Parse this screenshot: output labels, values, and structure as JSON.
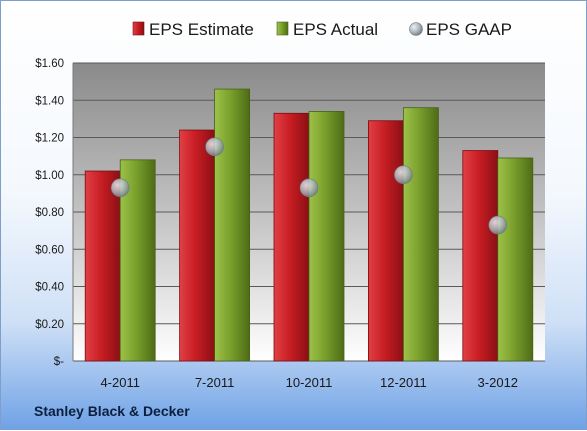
{
  "company": "Stanley Black & Decker",
  "colors": {
    "estimate": "#c81e24",
    "actual": "#7aa02c",
    "gaap": "#9aa5ad"
  },
  "chart_data": {
    "type": "bar",
    "categories": [
      "4-2011",
      "7-2011",
      "10-2011",
      "12-2011",
      "3-2012"
    ],
    "series": [
      {
        "name": "EPS Estimate",
        "type": "bar",
        "values": [
          1.02,
          1.24,
          1.33,
          1.29,
          1.13
        ]
      },
      {
        "name": "EPS Actual",
        "type": "bar",
        "values": [
          1.08,
          1.46,
          1.34,
          1.36,
          1.09
        ]
      },
      {
        "name": "EPS GAAP",
        "type": "scatter",
        "values": [
          0.93,
          1.15,
          0.93,
          1.0,
          0.73
        ]
      }
    ],
    "ylim": [
      0,
      1.6
    ],
    "yticks": [
      0,
      0.2,
      0.4,
      0.6,
      0.8,
      1.0,
      1.2,
      1.4,
      1.6
    ],
    "ytick_labels": [
      "$-",
      "$0.20",
      "$0.40",
      "$0.60",
      "$0.80",
      "$1.00",
      "$1.20",
      "$1.40",
      "$1.60"
    ],
    "grid": true,
    "legend_position": "top"
  }
}
